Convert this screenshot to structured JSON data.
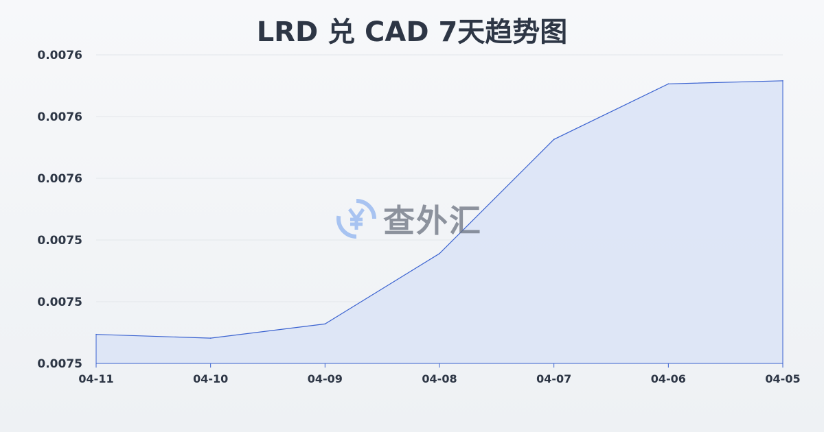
{
  "chart_data": {
    "type": "area",
    "title": "LRD 兑 CAD 7天趋势图",
    "xlabel": "",
    "ylabel": "",
    "categories": [
      "04-11",
      "04-10",
      "04-09",
      "04-08",
      "04-07",
      "04-06",
      "04-05"
    ],
    "values": [
      0.0075297,
      0.0075291,
      0.0075314,
      0.0075428,
      0.0075613,
      0.0075703,
      0.0075708
    ],
    "ylim": [
      0.007525,
      0.007575
    ],
    "yticks": [
      0.007525,
      0.007535,
      0.007545,
      0.007555,
      0.007565,
      0.007575
    ],
    "ytick_labels": [
      "0.0075",
      "0.0075",
      "0.0075",
      "0.0076",
      "0.0076",
      "0.0076"
    ],
    "grid": true,
    "colors": {
      "line": "#3a62d0",
      "fill": "#dbe4f6",
      "grid": "#e3e6ea"
    }
  },
  "watermark": {
    "text": "查外汇",
    "icon": "yen-exchange-icon",
    "color": "#8fb3f0"
  }
}
